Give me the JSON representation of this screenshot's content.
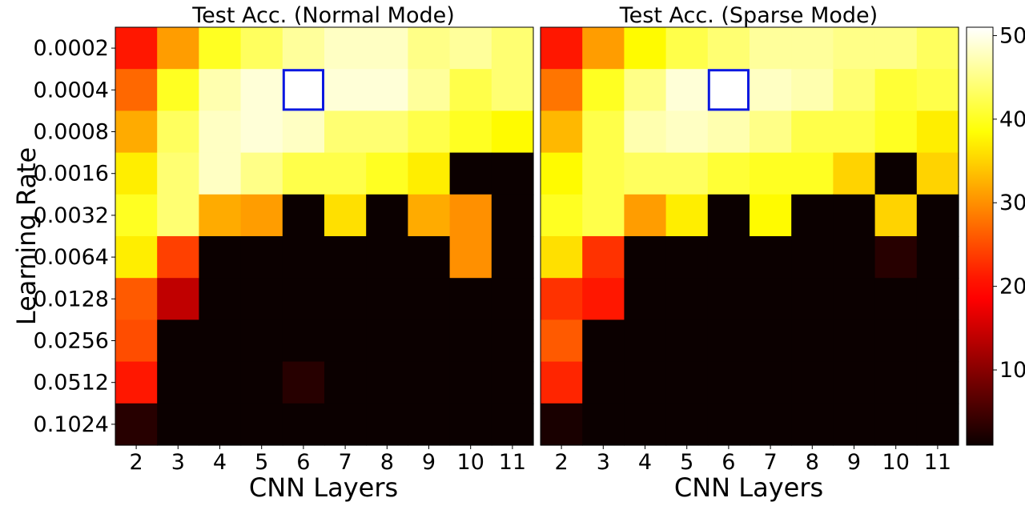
{
  "chart_data": [
    {
      "type": "heatmap",
      "title": "Test Acc. (Normal Mode)",
      "xlabel": "CNN Layers",
      "ylabel": "Learning Rate",
      "x": [
        "2",
        "3",
        "4",
        "5",
        "6",
        "7",
        "8",
        "9",
        "10",
        "11"
      ],
      "y": [
        "0.0002",
        "0.0004",
        "0.0008",
        "0.0016",
        "0.0032",
        "0.0064",
        "0.0128",
        "0.0256",
        "0.0512",
        "0.1024"
      ],
      "values": [
        [
          21,
          31,
          40,
          43,
          46,
          48,
          48,
          45,
          46,
          44
        ],
        [
          27,
          40,
          47,
          49,
          51,
          49,
          49,
          46,
          42,
          44
        ],
        [
          32,
          43,
          48,
          49,
          48,
          44,
          44,
          42,
          40,
          38
        ],
        [
          37,
          44,
          48,
          45,
          42,
          42,
          40,
          37,
          1,
          1
        ],
        [
          40,
          44,
          32,
          31,
          1,
          36,
          1,
          32,
          30,
          1
        ],
        [
          37,
          24,
          1,
          1,
          1,
          1,
          1,
          1,
          30,
          1
        ],
        [
          26,
          14,
          1,
          1,
          1,
          1,
          1,
          1,
          1,
          1
        ],
        [
          25,
          1,
          1,
          1,
          1,
          1,
          1,
          1,
          1,
          1
        ],
        [
          21,
          1,
          1,
          1,
          3,
          1,
          1,
          1,
          1,
          1
        ],
        [
          3,
          1,
          1,
          1,
          1,
          1,
          1,
          1,
          1,
          1
        ]
      ],
      "highlight": {
        "x": "6",
        "y": "0.0004"
      }
    },
    {
      "type": "heatmap",
      "title": "Test Acc. (Sparse Mode)",
      "xlabel": "CNN Layers",
      "x": [
        "2",
        "3",
        "4",
        "5",
        "6",
        "7",
        "8",
        "9",
        "10",
        "11"
      ],
      "y": [
        "0.0002",
        "0.0004",
        "0.0008",
        "0.0016",
        "0.0032",
        "0.0064",
        "0.0128",
        "0.0256",
        "0.0512",
        "0.1024"
      ],
      "values": [
        [
          21,
          31,
          38,
          42,
          44,
          46,
          46,
          45,
          45,
          43
        ],
        [
          28,
          40,
          45,
          49,
          51,
          48,
          47,
          44,
          41,
          42
        ],
        [
          33,
          42,
          47,
          48,
          47,
          45,
          42,
          42,
          40,
          37
        ],
        [
          38,
          42,
          43,
          43,
          41,
          40,
          40,
          35,
          1,
          35
        ],
        [
          40,
          42,
          31,
          37,
          1,
          38,
          1,
          1,
          35,
          1
        ],
        [
          36,
          23,
          1,
          1,
          1,
          1,
          1,
          1,
          3,
          1
        ],
        [
          23,
          21,
          1,
          1,
          1,
          1,
          1,
          1,
          1,
          1
        ],
        [
          26,
          1,
          1,
          1,
          1,
          1,
          1,
          1,
          1,
          1
        ],
        [
          22,
          1,
          1,
          1,
          1,
          1,
          1,
          1,
          1,
          1
        ],
        [
          2,
          1,
          1,
          1,
          1,
          1,
          1,
          1,
          1,
          1
        ]
      ],
      "highlight": {
        "x": "6",
        "y": "0.0004"
      }
    }
  ],
  "colorbar": {
    "colormap": "hot",
    "min": 1,
    "max": 51,
    "ticks": [
      "10",
      "20",
      "30",
      "40",
      "50"
    ],
    "tick_values": [
      10,
      20,
      30,
      40,
      50
    ]
  },
  "highlight_color": "#0a18e0"
}
